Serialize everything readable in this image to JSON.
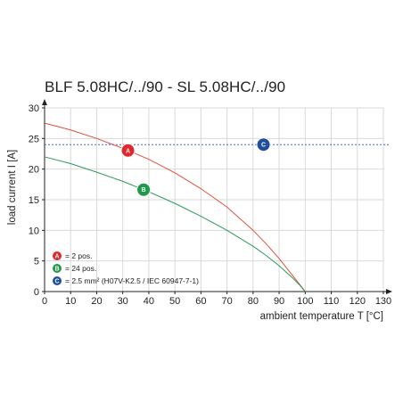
{
  "chart_data": {
    "type": "line",
    "title": "BLF 5.08HC/../90 - SL 5.08HC/../90",
    "xlabel": "ambient temperature T [°C]",
    "ylabel": "load current I [A]",
    "xlim": [
      0,
      130
    ],
    "ylim": [
      0,
      30
    ],
    "xticks": [
      0,
      10,
      20,
      30,
      40,
      50,
      60,
      70,
      80,
      90,
      100,
      110,
      120,
      130
    ],
    "yticks": [
      0,
      5,
      10,
      15,
      20,
      25,
      30
    ],
    "grid": true,
    "legend_position": "bottom-left",
    "series": [
      {
        "key": "A",
        "color": "#e0503c",
        "badge_color": "#e3262b",
        "label_x": 32,
        "x": [
          0,
          10,
          20,
          30,
          40,
          50,
          60,
          70,
          80,
          85,
          90,
          95,
          98,
          100
        ],
        "y": [
          27.5,
          26.4,
          25.0,
          23.4,
          21.6,
          19.4,
          16.8,
          13.8,
          10.0,
          7.8,
          5.4,
          2.7,
          1.1,
          0
        ]
      },
      {
        "key": "B",
        "color": "#2e9a5a",
        "badge_color": "#1f9a48",
        "label_x": 38,
        "x": [
          0,
          10,
          20,
          30,
          40,
          50,
          60,
          70,
          80,
          85,
          90,
          95,
          98,
          100
        ],
        "y": [
          22.0,
          20.9,
          19.5,
          18.0,
          16.3,
          14.4,
          12.3,
          10.0,
          7.4,
          5.9,
          4.2,
          2.3,
          1.0,
          0
        ]
      },
      {
        "key": "C",
        "color": "#4a63b0",
        "badge_color": "#1f4f9c",
        "label_x": 84,
        "x": [
          0,
          132
        ],
        "y": [
          24.0,
          24.0
        ]
      }
    ],
    "legend": [
      {
        "key": "A",
        "text": "= 2 pos."
      },
      {
        "key": "B",
        "text": "= 24 pos."
      },
      {
        "key": "C",
        "text": "= 2.5 mm² (H07V-K2.5 / IEC 60947-7-1)"
      }
    ]
  }
}
